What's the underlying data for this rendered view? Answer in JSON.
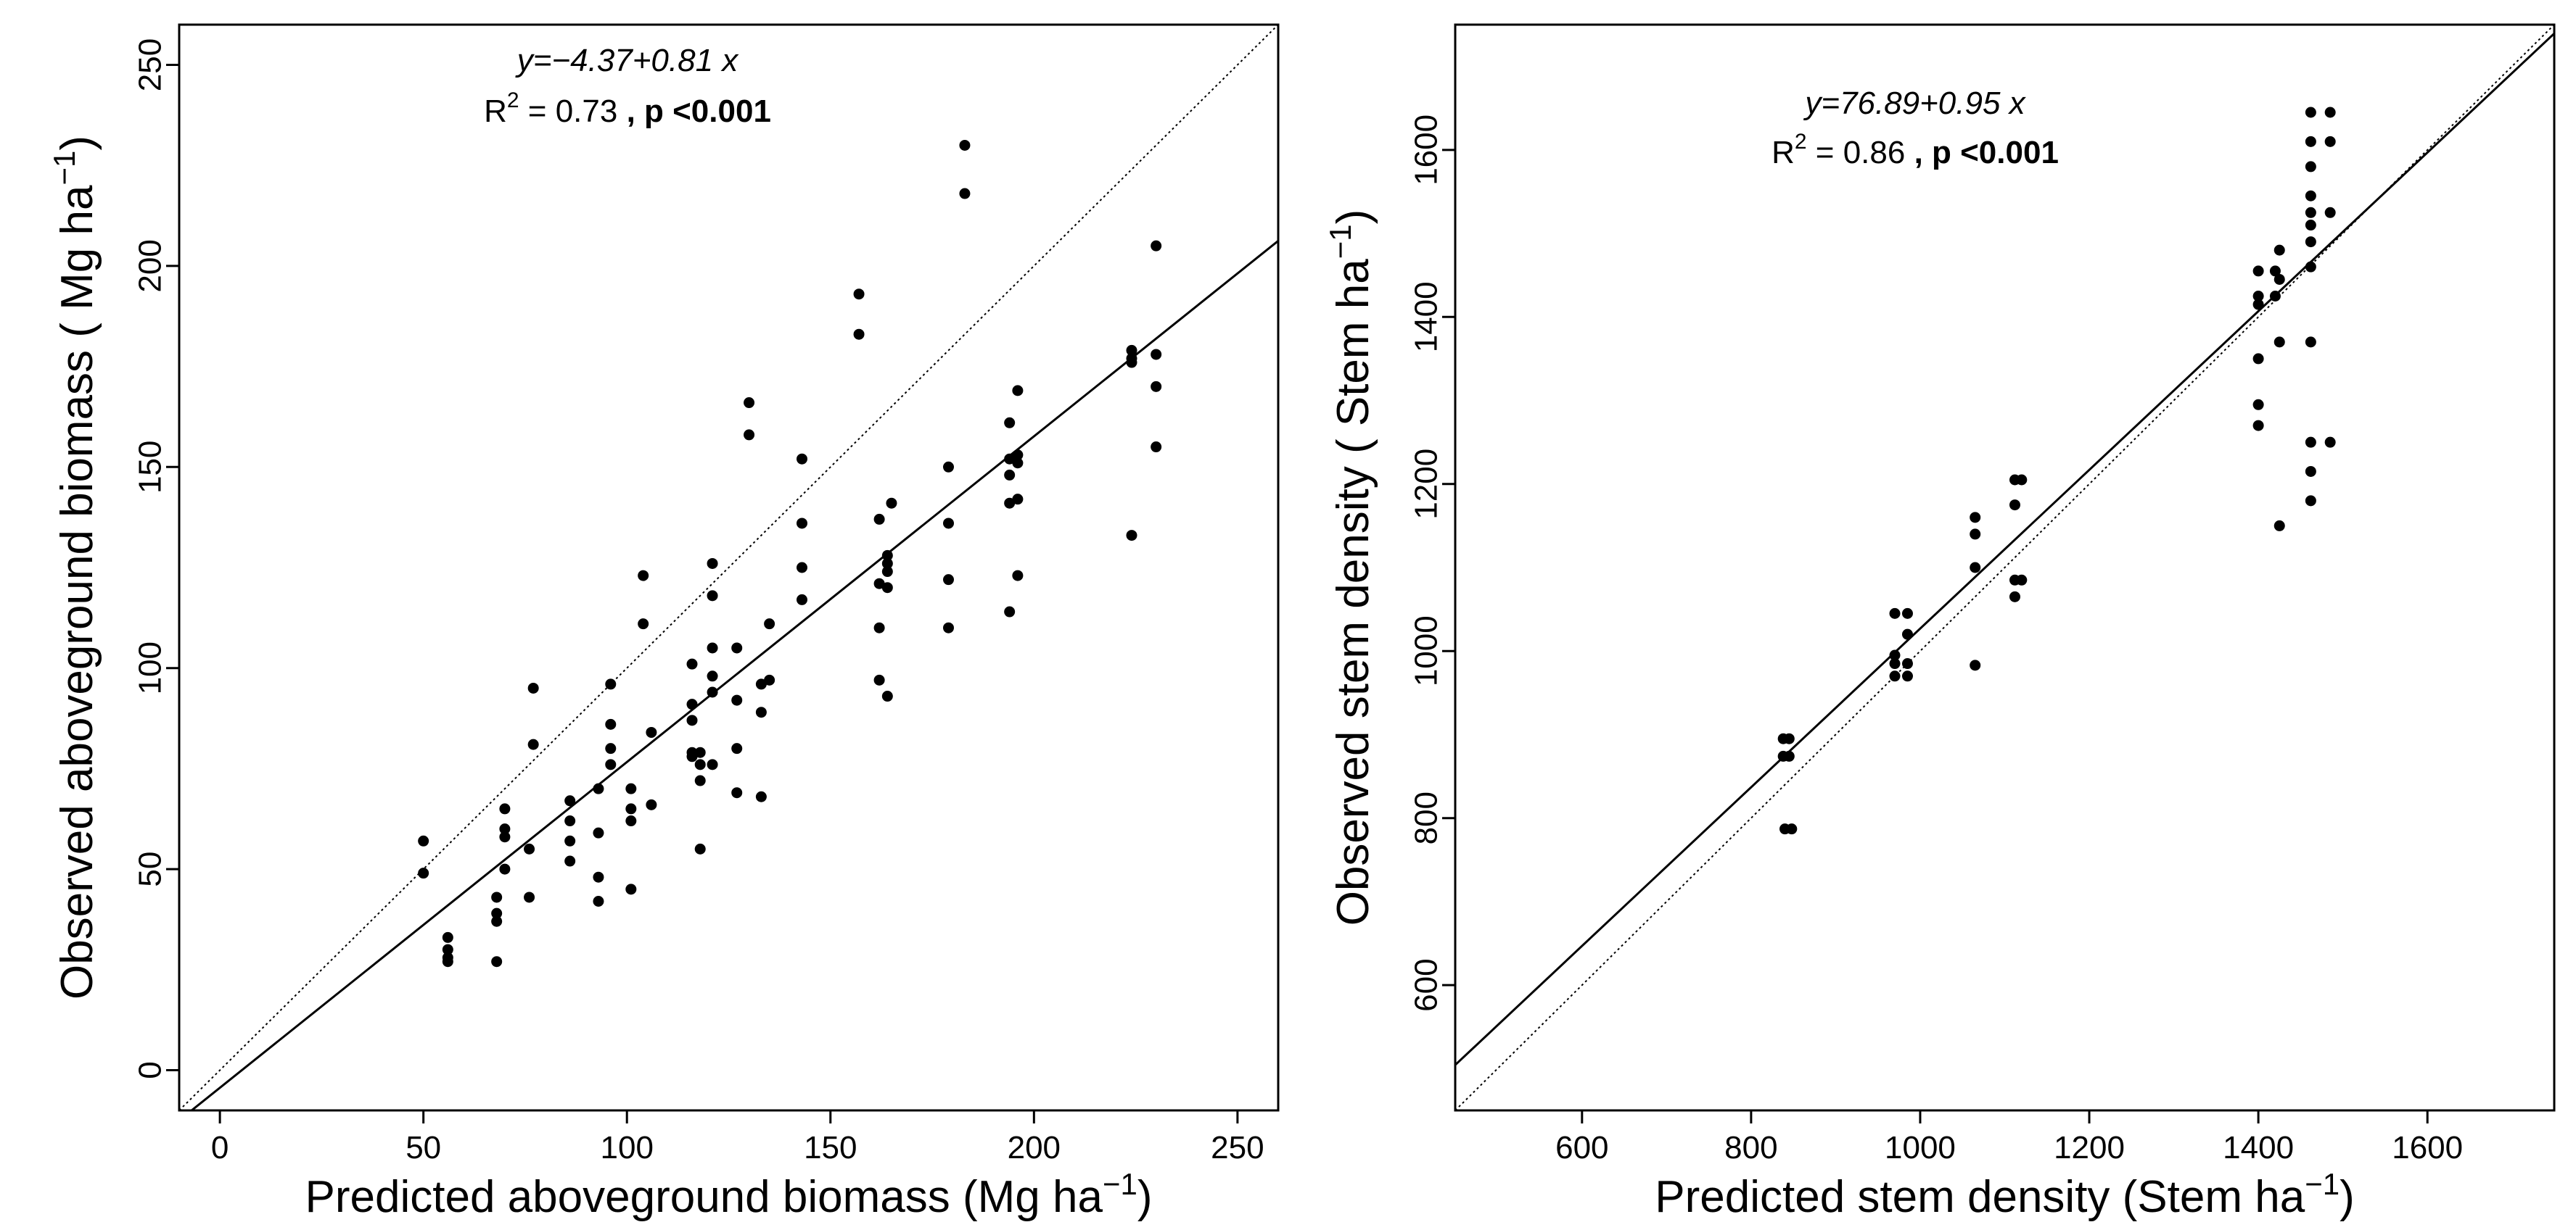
{
  "chart_data": [
    {
      "type": "scatter",
      "xlim": [
        -10,
        260
      ],
      "ylim": [
        -10,
        260
      ],
      "xticks": [
        0,
        50,
        100,
        150,
        200,
        250
      ],
      "yticks": [
        0,
        50,
        100,
        150,
        200,
        250
      ],
      "xlabel": "Predicted aboveground biomass (Mg  ha",
      "xlabel_sup": "−1",
      "xlabel_end": ")",
      "ylabel": "Observed aboveground biomass  ( Mg  ha",
      "ylabel_sup": "−1",
      "ylabel_end": ")",
      "equation": "y=−4.37+0.81 x",
      "r2_label": "R",
      "r2_sup": "2",
      "r2_value": " = 0.73 ",
      "p_text": ", p <0.001",
      "fit": {
        "intercept": -4.37,
        "slope": 0.81
      },
      "identity_line": true,
      "points": [
        [
          50,
          57
        ],
        [
          50,
          49
        ],
        [
          56,
          33
        ],
        [
          56,
          30
        ],
        [
          56,
          28
        ],
        [
          56,
          27
        ],
        [
          68,
          43
        ],
        [
          68,
          39
        ],
        [
          68,
          37
        ],
        [
          68,
          27
        ],
        [
          70,
          65
        ],
        [
          70,
          60
        ],
        [
          70,
          58
        ],
        [
          70,
          50
        ],
        [
          76,
          55
        ],
        [
          76,
          43
        ],
        [
          77,
          95
        ],
        [
          77,
          81
        ],
        [
          86,
          67
        ],
        [
          86,
          62
        ],
        [
          86,
          57
        ],
        [
          86,
          52
        ],
        [
          93,
          70
        ],
        [
          93,
          59
        ],
        [
          93,
          48
        ],
        [
          93,
          42
        ],
        [
          96,
          96
        ],
        [
          96,
          86
        ],
        [
          96,
          80
        ],
        [
          96,
          76
        ],
        [
          101,
          70
        ],
        [
          101,
          65
        ],
        [
          101,
          62
        ],
        [
          101,
          45
        ],
        [
          104,
          123
        ],
        [
          104,
          111
        ],
        [
          106,
          84
        ],
        [
          106,
          66
        ],
        [
          116,
          101
        ],
        [
          116,
          91
        ],
        [
          116,
          87
        ],
        [
          116,
          79
        ],
        [
          116,
          78
        ],
        [
          118,
          79
        ],
        [
          118,
          76
        ],
        [
          118,
          72
        ],
        [
          118,
          55
        ],
        [
          121,
          126
        ],
        [
          121,
          118
        ],
        [
          121,
          105
        ],
        [
          121,
          98
        ],
        [
          121,
          94
        ],
        [
          121,
          76
        ],
        [
          127,
          105
        ],
        [
          127,
          92
        ],
        [
          127,
          80
        ],
        [
          127,
          69
        ],
        [
          130,
          166
        ],
        [
          130,
          158
        ],
        [
          133,
          96
        ],
        [
          133,
          89
        ],
        [
          133,
          68
        ],
        [
          135,
          97
        ],
        [
          135,
          111
        ],
        [
          143,
          152
        ],
        [
          143,
          136
        ],
        [
          143,
          125
        ],
        [
          143,
          117
        ],
        [
          157,
          193
        ],
        [
          157,
          183
        ],
        [
          162,
          137
        ],
        [
          162,
          121
        ],
        [
          162,
          110
        ],
        [
          162,
          97
        ],
        [
          164,
          128
        ],
        [
          164,
          126
        ],
        [
          164,
          124
        ],
        [
          164,
          120
        ],
        [
          164,
          93
        ],
        [
          165,
          141
        ],
        [
          179,
          150
        ],
        [
          179,
          136
        ],
        [
          179,
          122
        ],
        [
          179,
          110
        ],
        [
          183,
          230
        ],
        [
          183,
          218
        ],
        [
          194,
          161
        ],
        [
          194,
          152
        ],
        [
          194,
          148
        ],
        [
          194,
          141
        ],
        [
          194,
          114
        ],
        [
          196,
          169
        ],
        [
          196,
          153
        ],
        [
          196,
          151
        ],
        [
          196,
          142
        ],
        [
          196,
          123
        ],
        [
          224,
          179
        ],
        [
          224,
          177
        ],
        [
          224,
          176
        ],
        [
          224,
          133
        ],
        [
          230,
          205
        ],
        [
          230,
          178
        ],
        [
          230,
          170
        ],
        [
          230,
          155
        ]
      ]
    },
    {
      "type": "scatter",
      "xlim": [
        450,
        1750
      ],
      "ylim": [
        450,
        1750
      ],
      "xticks": [
        600,
        800,
        1000,
        1200,
        1400,
        1600
      ],
      "yticks": [
        600,
        800,
        1000,
        1200,
        1400,
        1600
      ],
      "xlabel": "Predicted stem density (Stem  ha",
      "xlabel_sup": "−1",
      "xlabel_end": ")",
      "ylabel": "Observed stem density  ( Stem  ha",
      "ylabel_sup": "−1",
      "ylabel_end": ")",
      "equation": "y=76.89+0.95 x",
      "r2_label": "R",
      "r2_sup": "2",
      "r2_value": " = 0.86 ",
      "p_text": ", p <0.001",
      "fit": {
        "intercept": 76.89,
        "slope": 0.95
      },
      "identity_line": true,
      "points": [
        [
          838,
          895
        ],
        [
          838,
          874
        ],
        [
          845,
          895
        ],
        [
          845,
          874
        ],
        [
          840,
          787
        ],
        [
          848,
          787
        ],
        [
          970,
          1045
        ],
        [
          970,
          995
        ],
        [
          970,
          985
        ],
        [
          970,
          970
        ],
        [
          985,
          1045
        ],
        [
          985,
          1020
        ],
        [
          985,
          985
        ],
        [
          985,
          970
        ],
        [
          1065,
          1160
        ],
        [
          1065,
          1140
        ],
        [
          1065,
          1100
        ],
        [
          1065,
          983
        ],
        [
          1112,
          1205
        ],
        [
          1112,
          1175
        ],
        [
          1112,
          1085
        ],
        [
          1112,
          1065
        ],
        [
          1120,
          1205
        ],
        [
          1120,
          1085
        ],
        [
          1400,
          1455
        ],
        [
          1400,
          1425
        ],
        [
          1400,
          1415
        ],
        [
          1400,
          1350
        ],
        [
          1400,
          1295
        ],
        [
          1400,
          1270
        ],
        [
          1420,
          1455
        ],
        [
          1420,
          1425
        ],
        [
          1425,
          1480
        ],
        [
          1425,
          1445
        ],
        [
          1425,
          1370
        ],
        [
          1425,
          1150
        ],
        [
          1462,
          1645
        ],
        [
          1462,
          1610
        ],
        [
          1462,
          1580
        ],
        [
          1462,
          1545
        ],
        [
          1462,
          1525
        ],
        [
          1462,
          1510
        ],
        [
          1462,
          1490
        ],
        [
          1462,
          1460
        ],
        [
          1462,
          1370
        ],
        [
          1462,
          1250
        ],
        [
          1462,
          1215
        ],
        [
          1462,
          1180
        ],
        [
          1485,
          1645
        ],
        [
          1485,
          1610
        ],
        [
          1485,
          1525
        ],
        [
          1485,
          1250
        ]
      ]
    }
  ]
}
